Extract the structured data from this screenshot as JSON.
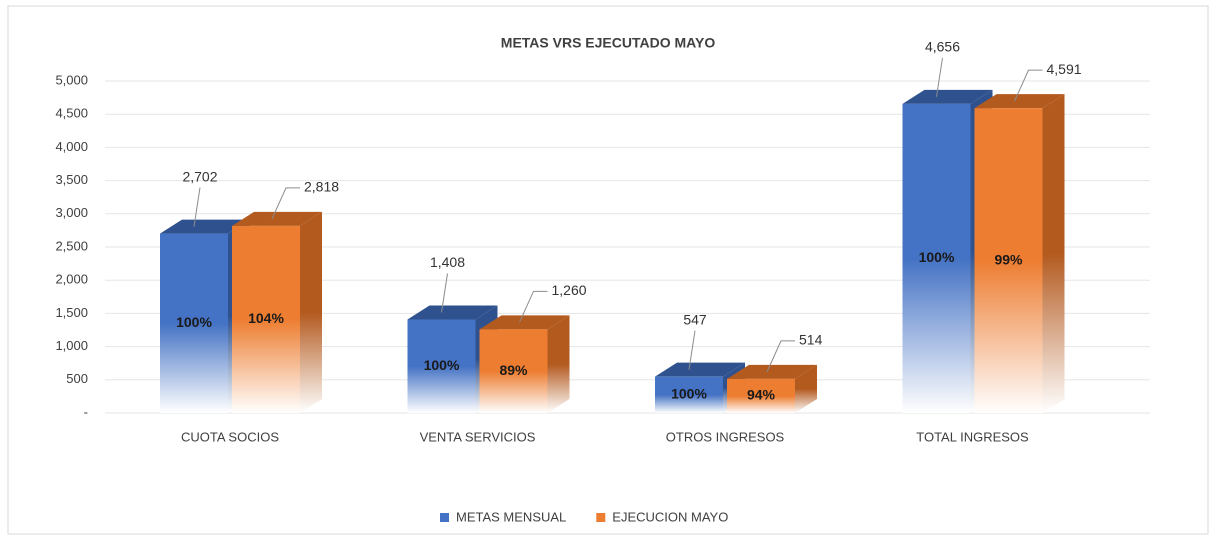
{
  "chart_data": {
    "type": "bar3d",
    "title": "METAS VRS EJECUTADO MAYO",
    "categories": [
      "CUOTA SOCIOS",
      "VENTA SERVICIOS",
      "OTROS INGRESOS",
      "TOTAL INGRESOS"
    ],
    "series": [
      {
        "name": "METAS MENSUAL",
        "color": "#4472c4",
        "side_color": "#2f528f",
        "values": [
          2702,
          1408,
          547,
          4656
        ],
        "value_labels": [
          "2,702",
          "1,408",
          "547",
          "4,656"
        ],
        "percent_labels": [
          "100%",
          "100%",
          "100%",
          "100%"
        ]
      },
      {
        "name": "EJECUCION MAYO",
        "color": "#ed7d31",
        "side_color": "#b35a1f",
        "values": [
          2818,
          1260,
          514,
          4591
        ],
        "value_labels": [
          "2,818",
          "1,260",
          "514",
          "4,591"
        ],
        "percent_labels": [
          "104%",
          "89%",
          "94%",
          "99%"
        ]
      }
    ],
    "ylim": [
      0,
      5000
    ],
    "yticks": [
      {
        "value": 0,
        "label": "-"
      },
      500,
      {
        "value": 1000,
        "label": "1,000"
      },
      {
        "value": 1500,
        "label": "1,500"
      },
      {
        "value": 2000,
        "label": "2,000"
      },
      {
        "value": 2500,
        "label": "2,500"
      },
      {
        "value": 3000,
        "label": "3,000"
      },
      {
        "value": 3500,
        "label": "3,500"
      },
      {
        "value": 4000,
        "label": "4,000"
      },
      {
        "value": 4500,
        "label": "4,500"
      },
      {
        "value": 5000,
        "label": "5,000"
      }
    ],
    "grid": true,
    "legend": "bottom"
  }
}
